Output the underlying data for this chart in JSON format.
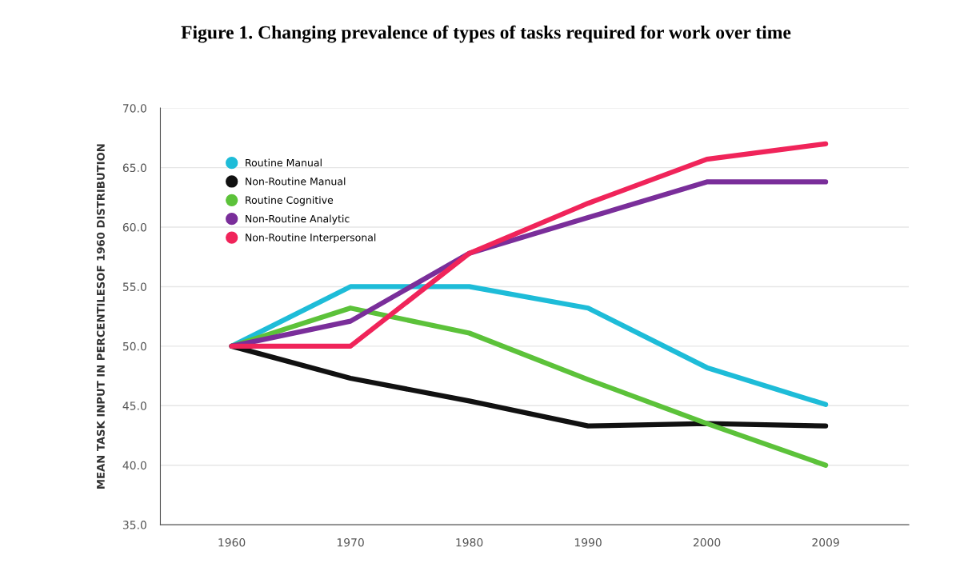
{
  "chart_data": {
    "type": "line",
    "title": "Figure 1. Changing prevalence of types of tasks required for work over time",
    "ylabel": "MEAN TASK INPUT IN PERCENTILESOF 1960 DISTRIBUTION",
    "categories": [
      "1960",
      "1970",
      "1980",
      "1990",
      "2000",
      "2009"
    ],
    "series": [
      {
        "name": "Routine Manual",
        "color": "#1ebcd8",
        "values": [
          50.0,
          55.0,
          55.0,
          53.2,
          48.2,
          45.1
        ]
      },
      {
        "name": "Non-Routine Manual",
        "color": "#111111",
        "values": [
          50.0,
          47.3,
          45.4,
          43.3,
          43.5,
          43.3
        ]
      },
      {
        "name": "Routine Cognitive",
        "color": "#5cc23a",
        "values": [
          50.0,
          53.2,
          51.1,
          47.2,
          43.5,
          40.0
        ]
      },
      {
        "name": "Non-Routine Analytic",
        "color": "#7a2e9a",
        "values": [
          50.0,
          52.1,
          57.8,
          60.8,
          63.8,
          63.8
        ]
      },
      {
        "name": "Non-Routine Interpersonal",
        "color": "#f0245a",
        "values": [
          50.0,
          50.0,
          57.8,
          62.0,
          65.7,
          67.0
        ]
      }
    ],
    "ylim": [
      35,
      70
    ],
    "yticks": [
      {
        "value": 35,
        "label": "35.0"
      },
      {
        "value": 40,
        "label": "40.0"
      },
      {
        "value": 45,
        "label": "45.0"
      },
      {
        "value": 50,
        "label": "50.0"
      },
      {
        "value": 55,
        "label": "55.0"
      },
      {
        "value": 60,
        "label": "60.0"
      },
      {
        "value": 65,
        "label": "65.0"
      },
      {
        "value": 70,
        "label": "70.0"
      }
    ],
    "grid": "y",
    "legend": "top left",
    "line_style": "solid",
    "marker": "none"
  }
}
